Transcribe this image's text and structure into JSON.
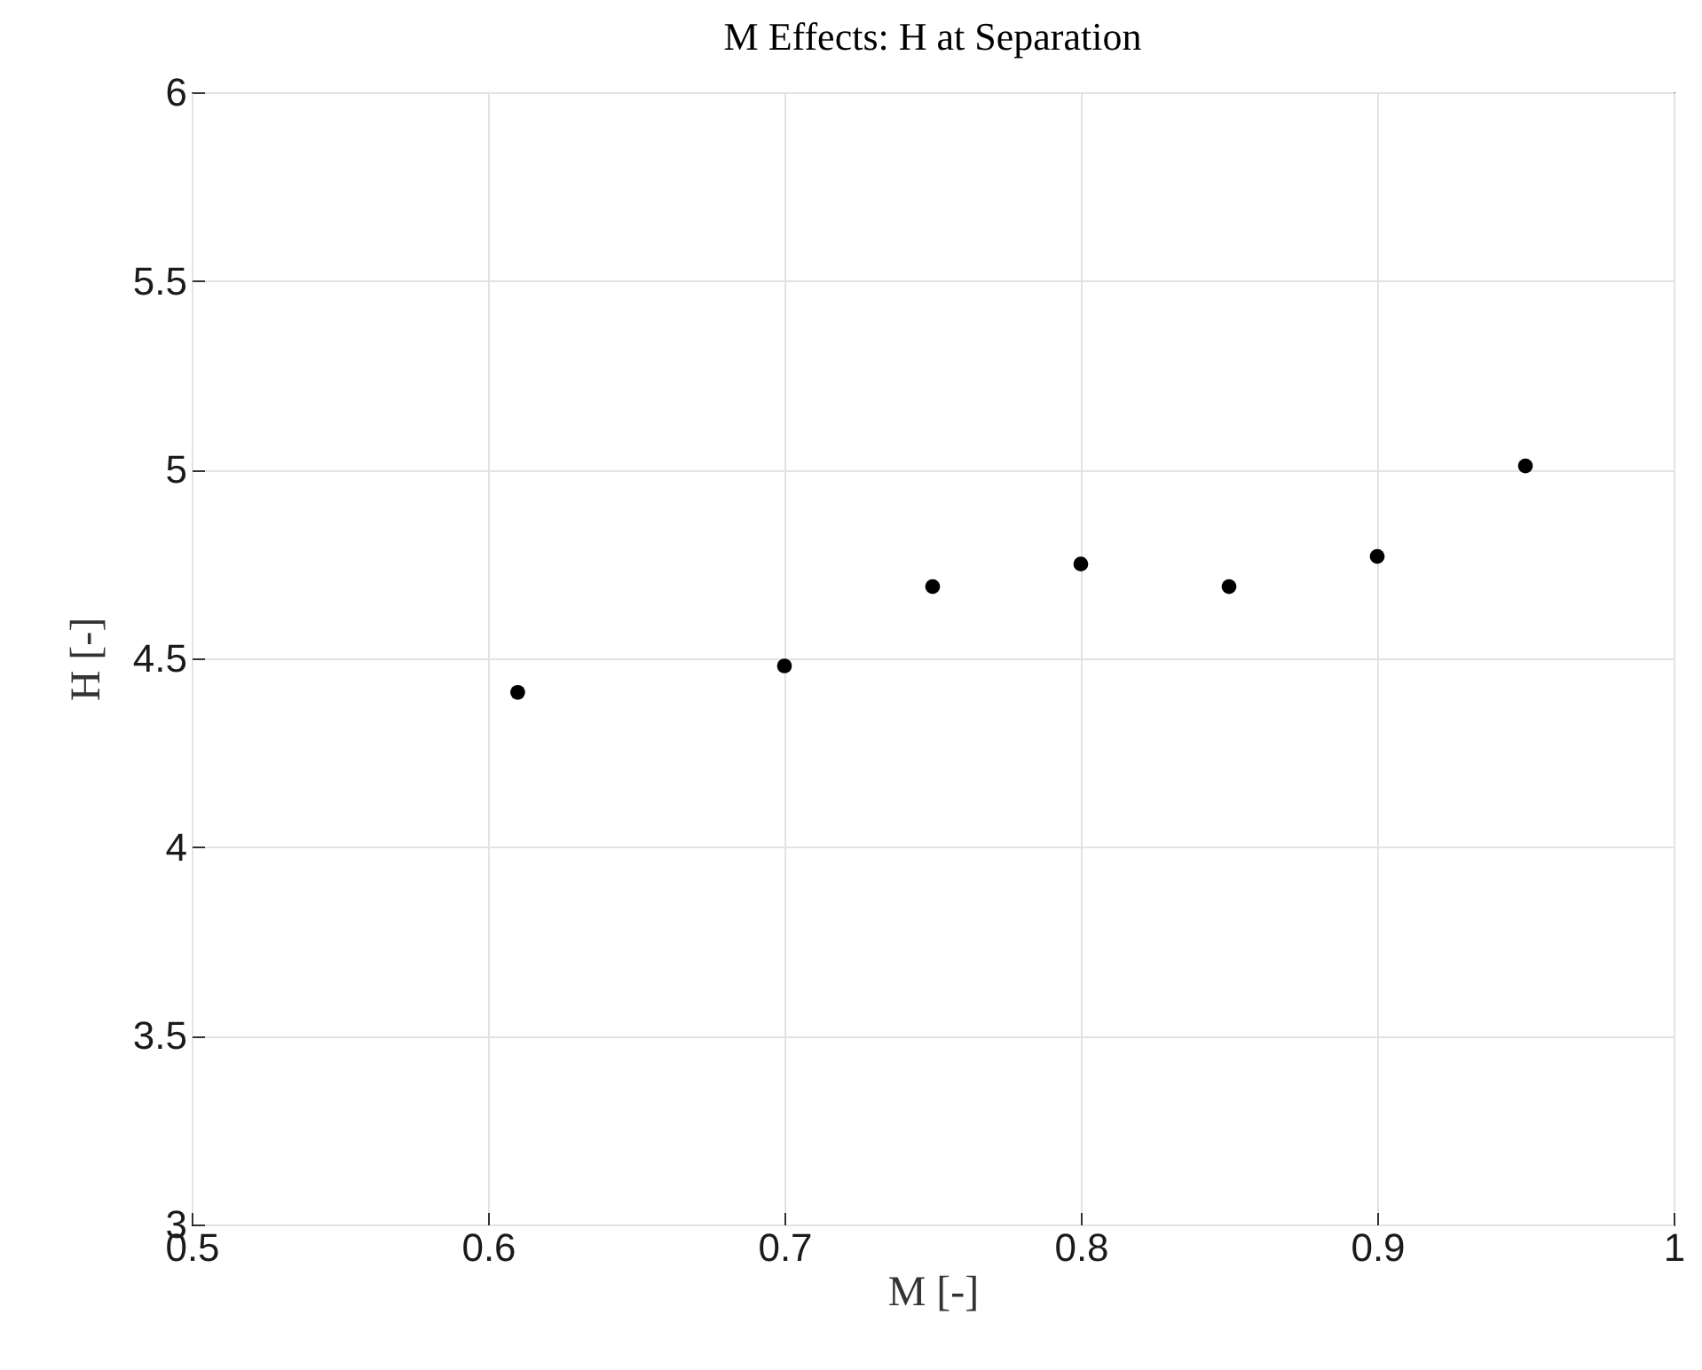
{
  "chart_data": {
    "type": "scatter",
    "title": "M Effects: H at Separation",
    "xlabel": "M [-]",
    "ylabel": "H [-]",
    "x": [
      0.61,
      0.7,
      0.75,
      0.8,
      0.85,
      0.9,
      0.95
    ],
    "series": [
      {
        "color": "#000000",
        "values": [
          4.41,
          4.48,
          4.69,
          4.75,
          4.69,
          4.77,
          5.01
        ]
      }
    ],
    "xlim": [
      0.5,
      1
    ],
    "xticks": [
      0.5,
      0.6,
      0.7,
      0.8,
      0.9,
      1
    ],
    "ylim": [
      3,
      6
    ],
    "yticks": [
      3,
      3.5,
      4,
      4.5,
      5,
      5.5,
      6
    ],
    "grid": true,
    "marker": "circle"
  }
}
